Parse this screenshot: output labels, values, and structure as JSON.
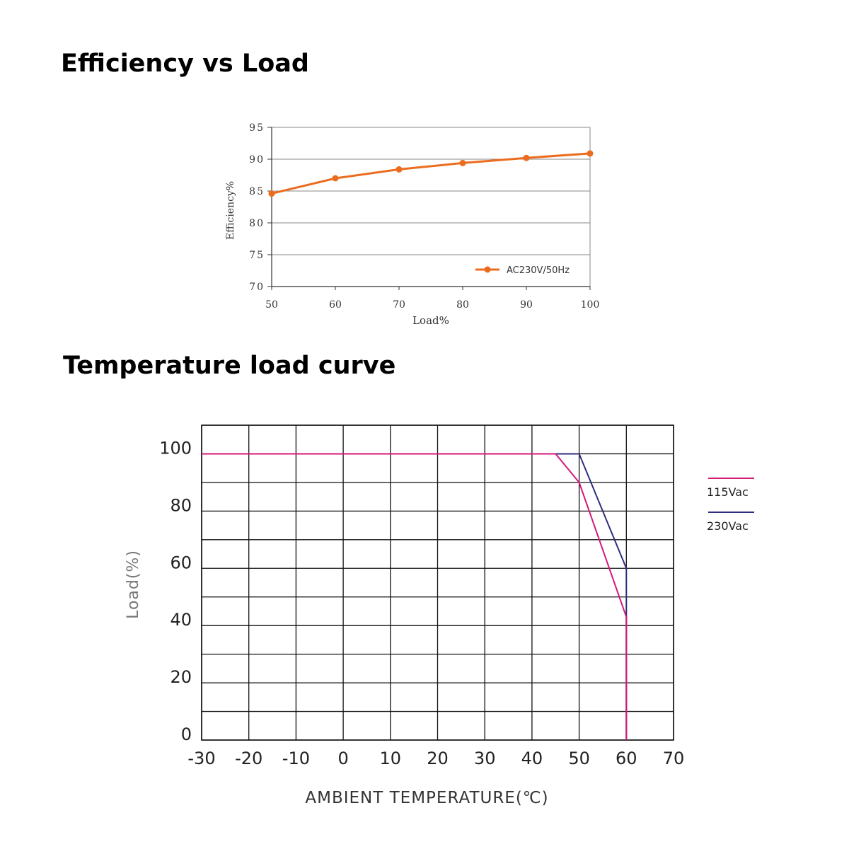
{
  "sections": [
    {
      "title": "Efficiency vs Load"
    },
    {
      "title": "Temperature load curve"
    }
  ],
  "chart_data": [
    {
      "type": "line",
      "xlabel": "Load%",
      "ylabel": "Efficiency%",
      "xlim": [
        50,
        100
      ],
      "ylim": [
        70,
        95
      ],
      "xticks": [
        50,
        60,
        70,
        80,
        90,
        100
      ],
      "yticks": [
        70,
        75,
        80,
        85,
        90,
        95
      ],
      "grid": "horizontal",
      "legend": "bottom-right",
      "series": [
        {
          "name": "AC230V/50Hz",
          "color": "#ec6c1f",
          "marker": "circle",
          "x": [
            50,
            60,
            70,
            80,
            90,
            100
          ],
          "y": [
            84.6,
            87.0,
            88.4,
            89.4,
            90.2,
            90.9
          ]
        }
      ]
    },
    {
      "type": "line",
      "xlabel": "AMBIENT TEMPERATURE(℃)",
      "ylabel": "Load(%)",
      "xlim": [
        -30,
        70
      ],
      "ylim": [
        0,
        110
      ],
      "xticks": [
        -30,
        -20,
        -10,
        0,
        10,
        20,
        30,
        40,
        50,
        60,
        70
      ],
      "yticks": [
        0,
        20,
        40,
        60,
        80,
        100
      ],
      "grid": "both",
      "legend": "right",
      "series": [
        {
          "name": "115Vac",
          "color": "#d4197a",
          "x": [
            -30,
            45,
            50,
            60,
            60
          ],
          "y": [
            100,
            100,
            90,
            43,
            0
          ]
        },
        {
          "name": "230Vac",
          "color": "#2e2d7e",
          "x": [
            -30,
            50,
            60,
            60
          ],
          "y": [
            100,
            100,
            60,
            0
          ]
        }
      ]
    }
  ]
}
